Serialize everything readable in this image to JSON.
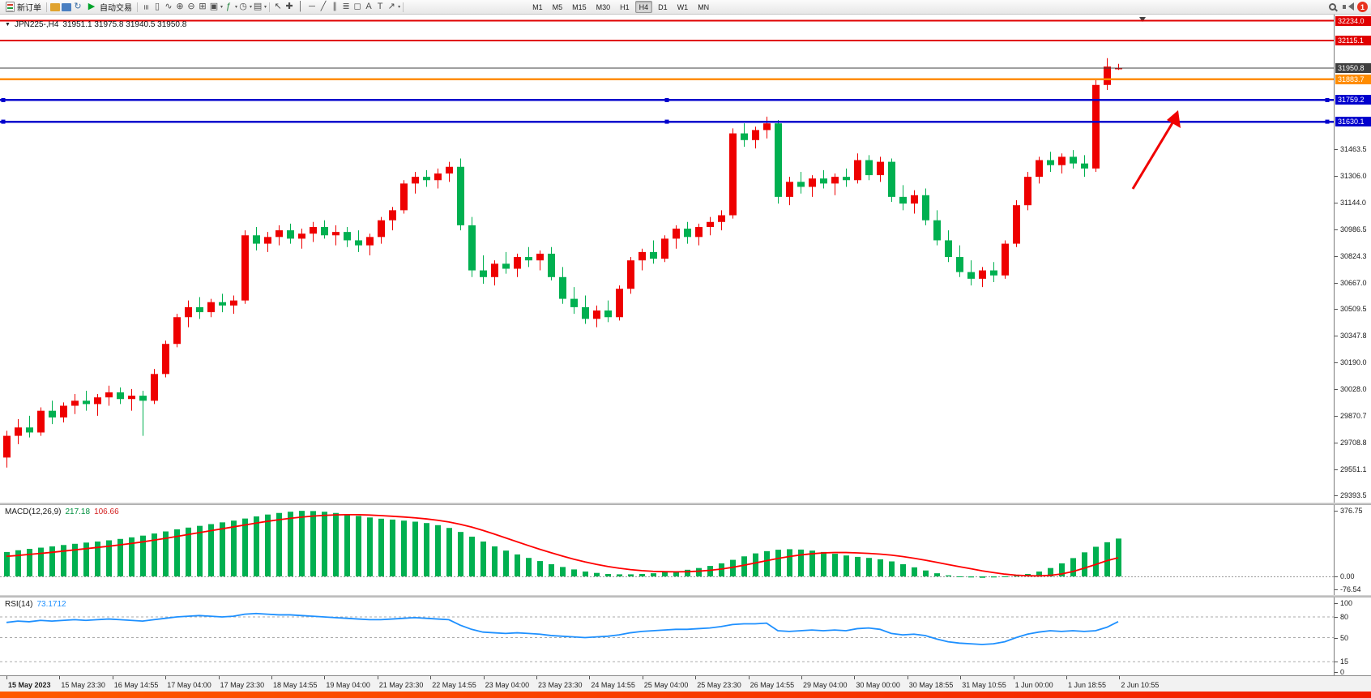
{
  "toolbar": {
    "new_order_label": "新订单",
    "auto_trading_label": "自动交易",
    "notification_count": "1",
    "timeframes": [
      "M1",
      "M5",
      "M15",
      "M30",
      "H1",
      "H4",
      "D1",
      "W1",
      "MN"
    ],
    "active_timeframe": "H4",
    "left_icons": [
      {
        "name": "charts-folder-icon",
        "type": "block",
        "color": "#e0a32e"
      },
      {
        "name": "profile-icon",
        "type": "block",
        "color": "#4a7fc1"
      },
      {
        "name": "refresh-icon",
        "glyph": "↻",
        "color": "#3a6ea5"
      }
    ],
    "chart_tools": [
      {
        "name": "bar-chart-icon",
        "glyph": "≡",
        "rot": true
      },
      {
        "name": "candlestick-chart-icon",
        "glyph": "▯"
      },
      {
        "name": "line-chart-icon",
        "glyph": "∿"
      },
      {
        "name": "zoom-in-icon",
        "glyph": "⊕"
      },
      {
        "name": "zoom-out-icon",
        "glyph": "⊖"
      },
      {
        "name": "tile-windows-icon",
        "glyph": "⊞"
      },
      {
        "name": "new-chart-icon",
        "glyph": "▣",
        "caret": true
      },
      {
        "name": "indicators-icon",
        "glyph": "ƒ",
        "color": "#1a7f37",
        "caret": true
      },
      {
        "name": "periods-icon",
        "glyph": "◷",
        "caret": true
      },
      {
        "name": "templates-icon",
        "glyph": "▤",
        "caret": true
      }
    ],
    "draw_tools": [
      {
        "name": "cursor-icon",
        "glyph": "↖"
      },
      {
        "name": "crosshair-icon",
        "glyph": "✚"
      },
      {
        "name": "vertical-line-icon",
        "glyph": "│"
      },
      {
        "name": "horizontal-line-icon",
        "glyph": "─"
      },
      {
        "name": "trendline-icon",
        "glyph": "╱"
      },
      {
        "name": "equidistant-channel-icon",
        "glyph": "∥"
      },
      {
        "name": "fibonacci-icon",
        "glyph": "≣"
      },
      {
        "name": "shapes-icon",
        "glyph": "◻"
      },
      {
        "name": "text-icon",
        "glyph": "A"
      },
      {
        "name": "label-icon",
        "glyph": "T"
      },
      {
        "name": "arrow-tool-icon",
        "glyph": "↗",
        "caret": true
      }
    ]
  },
  "chart": {
    "title": {
      "symbol": "JPN225-,H4",
      "ohlc": "31951.1 31975.8 31940.5 31950.8"
    },
    "up_color": "#ee0000",
    "down_color": "#00b050",
    "price_axis_ticks": [
      "31463.5",
      "31306.0",
      "31144.0",
      "30986.5",
      "30824.3",
      "30667.0",
      "30509.5",
      "30347.8",
      "30190.0",
      "30028.0",
      "29870.7",
      "29708.8",
      "29551.1",
      "29393.5"
    ],
    "levels": [
      {
        "name": "horizontal-line-32234",
        "price": 32234.0,
        "label": "32234.0",
        "color": "#e00000",
        "thickness": 2,
        "handles": false
      },
      {
        "name": "horizontal-line-32115",
        "price": 32115.1,
        "label": "32115.1",
        "color": "#e00000",
        "thickness": 2,
        "handles": false
      },
      {
        "name": "bid-price-line",
        "price": 31950.8,
        "label": "31950.8",
        "color": "#3f3f3f",
        "thickness": 1,
        "handles": false
      },
      {
        "name": "horizontal-line-31883",
        "price": 31883.7,
        "label": "31883.7",
        "color": "#ff8c00",
        "thickness": 2.5,
        "handles": false
      },
      {
        "name": "horizontal-line-31759",
        "price": 31759.2,
        "label": "31759.2",
        "color": "#0000cd",
        "thickness": 2.5,
        "handles": true
      },
      {
        "name": "horizontal-line-31630",
        "price": 31630.1,
        "label": "31630.1",
        "color": "#0000cd",
        "thickness": 2.5,
        "handles": true
      }
    ],
    "annotation_arrow": {
      "name": "trend-arrow",
      "color": "#f00000"
    },
    "time_axis": [
      "15 May 2023",
      "15 May 23:30",
      "16 May 14:55",
      "17 May 04:00",
      "17 May 23:30",
      "18 May 14:55",
      "19 May 04:00",
      "21 May 23:30",
      "22 May 14:55",
      "23 May 04:00",
      "23 May 23:30",
      "24 May 14:55",
      "25 May 04:00",
      "25 May 23:30",
      "26 May 14:55",
      "29 May 04:00",
      "30 May 00:00",
      "30 May 18:55",
      "31 May 10:55",
      "1 Jun 00:00",
      "1 Jun 18:55",
      "2 Jun 10:55"
    ]
  },
  "macd": {
    "name": "MACD(12,26,9)",
    "value_main": "217.18",
    "value_signal": "106.66",
    "scale": [
      "376.75",
      "0.00",
      "-76.54"
    ],
    "histogram_color": "#00b050",
    "signal_color": "#ff0000",
    "main_value_color": "#00903f",
    "signal_value_color": "#d42020"
  },
  "rsi": {
    "name": "RSI(14)",
    "value": "73.1712",
    "scale": [
      "100",
      "80",
      "50",
      "15",
      "0"
    ],
    "levels": [
      80,
      50,
      15
    ],
    "line_color": "#1e90ff"
  },
  "chart_data": {
    "type": "candlestick",
    "title": "JPN225-,H4",
    "timeframe": "H4",
    "y_range": [
      29393.5,
      32234.0
    ],
    "ohlc": [
      [
        29620,
        29780,
        29560,
        29750
      ],
      [
        29750,
        29850,
        29700,
        29800
      ],
      [
        29800,
        29870,
        29740,
        29770
      ],
      [
        29770,
        29920,
        29750,
        29900
      ],
      [
        29900,
        29960,
        29820,
        29860
      ],
      [
        29860,
        29950,
        29830,
        29930
      ],
      [
        29930,
        30000,
        29880,
        29960
      ],
      [
        29960,
        30020,
        29900,
        29940
      ],
      [
        29940,
        30000,
        29870,
        29980
      ],
      [
        29980,
        30050,
        29930,
        30010
      ],
      [
        30010,
        30040,
        29940,
        29970
      ],
      [
        29970,
        30030,
        29900,
        29990
      ],
      [
        29990,
        30020,
        29750,
        29960
      ],
      [
        29960,
        30150,
        29940,
        30120
      ],
      [
        30120,
        30320,
        30100,
        30300
      ],
      [
        30300,
        30480,
        30280,
        30460
      ],
      [
        30460,
        30560,
        30400,
        30520
      ],
      [
        30520,
        30580,
        30450,
        30490
      ],
      [
        30490,
        30570,
        30460,
        30550
      ],
      [
        30550,
        30600,
        30490,
        30530
      ],
      [
        30530,
        30590,
        30480,
        30560
      ],
      [
        30560,
        30980,
        30540,
        30950
      ],
      [
        30950,
        31000,
        30860,
        30900
      ],
      [
        30900,
        30970,
        30850,
        30940
      ],
      [
        30940,
        31010,
        30890,
        30980
      ],
      [
        30980,
        31020,
        30900,
        30930
      ],
      [
        30930,
        30990,
        30870,
        30960
      ],
      [
        30960,
        31030,
        30910,
        31000
      ],
      [
        31000,
        31040,
        30930,
        30950
      ],
      [
        30950,
        31010,
        30890,
        30970
      ],
      [
        30970,
        31000,
        30880,
        30920
      ],
      [
        30920,
        30980,
        30850,
        30890
      ],
      [
        30890,
        30960,
        30830,
        30940
      ],
      [
        30940,
        31060,
        30900,
        31040
      ],
      [
        31040,
        31120,
        30980,
        31100
      ],
      [
        31100,
        31280,
        31080,
        31260
      ],
      [
        31260,
        31330,
        31200,
        31300
      ],
      [
        31300,
        31340,
        31240,
        31280
      ],
      [
        31280,
        31350,
        31230,
        31320
      ],
      [
        31320,
        31390,
        31270,
        31360
      ],
      [
        31360,
        31410,
        30980,
        31010
      ],
      [
        31010,
        31060,
        30700,
        30740
      ],
      [
        30740,
        30830,
        30660,
        30700
      ],
      [
        30700,
        30800,
        30650,
        30780
      ],
      [
        30780,
        30850,
        30720,
        30750
      ],
      [
        30750,
        30840,
        30700,
        30820
      ],
      [
        30820,
        30880,
        30760,
        30800
      ],
      [
        30800,
        30860,
        30740,
        30840
      ],
      [
        30840,
        30880,
        30680,
        30700
      ],
      [
        30700,
        30760,
        30540,
        30570
      ],
      [
        30570,
        30640,
        30480,
        30520
      ],
      [
        30520,
        30590,
        30420,
        30450
      ],
      [
        30450,
        30530,
        30400,
        30500
      ],
      [
        30500,
        30560,
        30430,
        30460
      ],
      [
        30460,
        30650,
        30440,
        30630
      ],
      [
        30630,
        30820,
        30600,
        30800
      ],
      [
        30800,
        30870,
        30740,
        30850
      ],
      [
        30850,
        30920,
        30780,
        30810
      ],
      [
        30810,
        30950,
        30790,
        30930
      ],
      [
        30930,
        31010,
        30870,
        30990
      ],
      [
        30990,
        31030,
        30900,
        30940
      ],
      [
        30940,
        31020,
        30890,
        31000
      ],
      [
        31000,
        31060,
        30950,
        31030
      ],
      [
        31030,
        31100,
        30980,
        31070
      ],
      [
        31070,
        31590,
        31050,
        31560
      ],
      [
        31560,
        31620,
        31480,
        31520
      ],
      [
        31520,
        31600,
        31470,
        31580
      ],
      [
        31580,
        31660,
        31530,
        31620
      ],
      [
        31620,
        31640,
        31140,
        31180
      ],
      [
        31180,
        31300,
        31130,
        31270
      ],
      [
        31270,
        31330,
        31200,
        31240
      ],
      [
        31240,
        31310,
        31180,
        31290
      ],
      [
        31290,
        31340,
        31230,
        31260
      ],
      [
        31260,
        31320,
        31190,
        31300
      ],
      [
        31300,
        31350,
        31240,
        31280
      ],
      [
        31280,
        31440,
        31260,
        31400
      ],
      [
        31400,
        31430,
        31280,
        31310
      ],
      [
        31310,
        31420,
        31270,
        31390
      ],
      [
        31390,
        31410,
        31150,
        31180
      ],
      [
        31180,
        31250,
        31100,
        31140
      ],
      [
        31140,
        31220,
        31080,
        31190
      ],
      [
        31190,
        31230,
        31010,
        31040
      ],
      [
        31040,
        31100,
        30890,
        30920
      ],
      [
        30920,
        30980,
        30790,
        30820
      ],
      [
        30820,
        30890,
        30700,
        30730
      ],
      [
        30730,
        30800,
        30650,
        30690
      ],
      [
        30690,
        30760,
        30640,
        30740
      ],
      [
        30740,
        30790,
        30670,
        30710
      ],
      [
        30710,
        30920,
        30690,
        30900
      ],
      [
        30900,
        31160,
        30880,
        31130
      ],
      [
        31130,
        31330,
        31100,
        31300
      ],
      [
        31300,
        31420,
        31260,
        31400
      ],
      [
        31400,
        31450,
        31330,
        31370
      ],
      [
        31370,
        31440,
        31320,
        31420
      ],
      [
        31420,
        31460,
        31350,
        31380
      ],
      [
        31380,
        31430,
        31300,
        31350
      ],
      [
        31350,
        31880,
        31330,
        31850
      ],
      [
        31850,
        32010,
        31820,
        31960
      ],
      [
        31951,
        31976,
        31940,
        31951
      ]
    ],
    "macd": {
      "type": "bar+line",
      "range": [
        -76.54,
        376.75
      ],
      "current_main": 217.18,
      "current_signal": 106.66,
      "histogram": [
        140,
        150,
        158,
        165,
        172,
        180,
        187,
        194,
        200,
        207,
        215,
        224,
        234,
        246,
        258,
        270,
        280,
        290,
        300,
        310,
        320,
        332,
        344,
        355,
        364,
        371,
        376,
        375,
        371,
        364,
        356,
        347,
        338,
        331,
        326,
        320,
        314,
        306,
        294,
        278,
        255,
        228,
        200,
        172,
        148,
        126,
        106,
        88,
        70,
        54,
        40,
        28,
        20,
        14,
        12,
        12,
        14,
        18,
        24,
        30,
        38,
        48,
        60,
        75,
        95,
        115,
        132,
        145,
        153,
        156,
        154,
        148,
        140,
        130,
        120,
        112,
        106,
        98,
        86,
        70,
        52,
        34,
        18,
        6,
        -2,
        -6,
        -8,
        -6,
        -2,
        4,
        14,
        28,
        48,
        75,
        105,
        138,
        170,
        196,
        217
      ],
      "signal": [
        115,
        120,
        126,
        132,
        138,
        145,
        152,
        159,
        166,
        173,
        181,
        189,
        198,
        208,
        218,
        229,
        240,
        251,
        262,
        273,
        284,
        295,
        306,
        316,
        325,
        333,
        340,
        346,
        350,
        353,
        354,
        354,
        352,
        349,
        345,
        341,
        336,
        330,
        322,
        312,
        299,
        283,
        264,
        243,
        221,
        199,
        177,
        156,
        136,
        117,
        99,
        83,
        69,
        57,
        47,
        39,
        33,
        29,
        27,
        26,
        27,
        30,
        35,
        42,
        52,
        64,
        77,
        90,
        103,
        114,
        123,
        130,
        135,
        137,
        137,
        135,
        132,
        128,
        122,
        114,
        104,
        93,
        81,
        68,
        56,
        44,
        32,
        22,
        13,
        7,
        4,
        3,
        6,
        14,
        28,
        47,
        68,
        90,
        107
      ]
    },
    "rsi": {
      "type": "line",
      "range": [
        0,
        100
      ],
      "current": 73.1712,
      "levels": [
        80,
        50,
        15
      ],
      "values": [
        72,
        74,
        73,
        75,
        74,
        75,
        76,
        75,
        76,
        77,
        76,
        75,
        74,
        76,
        78,
        80,
        81,
        82,
        81,
        80,
        81,
        84,
        85,
        84,
        83,
        83,
        82,
        81,
        80,
        79,
        78,
        77,
        76,
        76,
        77,
        78,
        79,
        78,
        77,
        76,
        68,
        62,
        58,
        57,
        56,
        57,
        56,
        55,
        53,
        52,
        51,
        50,
        51,
        52,
        54,
        57,
        59,
        60,
        61,
        62,
        62,
        63,
        64,
        66,
        69,
        70,
        70,
        71,
        60,
        59,
        60,
        61,
        60,
        61,
        60,
        63,
        64,
        62,
        56,
        54,
        55,
        53,
        48,
        44,
        42,
        41,
        40,
        41,
        44,
        50,
        55,
        58,
        60,
        59,
        60,
        59,
        60,
        65,
        73.2
      ]
    }
  }
}
